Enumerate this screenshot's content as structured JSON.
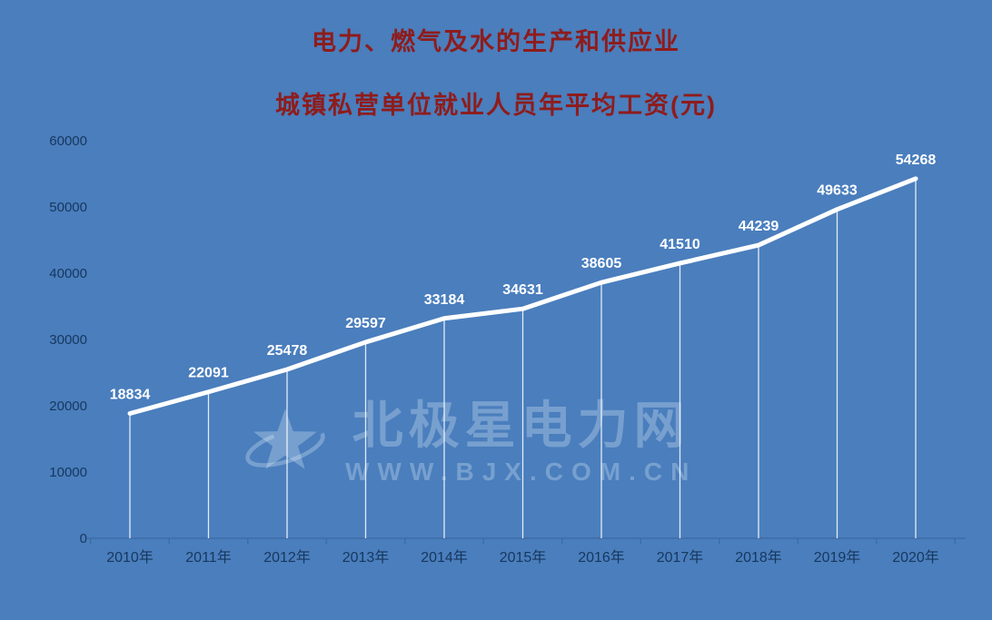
{
  "title": {
    "line1": "电力、燃气及水的生产和供应业",
    "line2": "城镇私营单位就业人员年平均工资(元)"
  },
  "watermark": {
    "name": "北极星电力网",
    "url": "WWW.BJX.COM.CN",
    "logo_icon": "star-orbit-icon"
  },
  "colors": {
    "background": "#4a7ebd",
    "title": "#8e1c1c",
    "axis_text": "#17375e",
    "line": "#ffffff"
  },
  "chart_data": {
    "type": "line",
    "title": "电力、燃气及水的生产和供应业 城镇私营单位就业人员年平均工资(元)",
    "categories": [
      "2010年",
      "2011年",
      "2012年",
      "2013年",
      "2014年",
      "2015年",
      "2016年",
      "2017年",
      "2018年",
      "2019年",
      "2020年"
    ],
    "series": [
      {
        "name": "城镇私营单位就业人员年平均工资(元)",
        "values": [
          18834,
          22091,
          25478,
          29597,
          33184,
          34631,
          38605,
          41510,
          44239,
          49633,
          54268
        ]
      }
    ],
    "xlabel": "",
    "ylabel": "",
    "ylim": [
      0,
      60000
    ],
    "yticks": [
      0,
      10000,
      20000,
      30000,
      40000,
      50000,
      60000
    ],
    "grid": false,
    "legend": "none",
    "data_labels": true,
    "drop_lines": true
  }
}
